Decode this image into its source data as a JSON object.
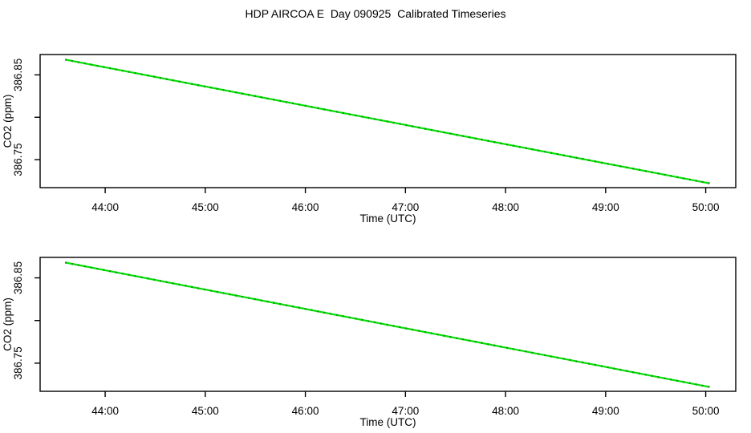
{
  "title": "HDP AIRCOA E  Day 090925  Calibrated Timeseries",
  "colors": {
    "background": "#FFFFFF",
    "axis": "#000000",
    "line_green_bright": "#00E300",
    "line_green_dark": "#0A9A0A"
  },
  "chart_data": {
    "type": "line",
    "title": "HDP AIRCOA E  Day 090925  Calibrated Timeseries",
    "layout": "two stacked panels with identical calibrated CO2 timeseries, full box axes, no grid, no legend",
    "panels": [
      {
        "name": "top",
        "xlabel": "Time (UTC)",
        "ylabel": "CO2 (ppm)",
        "xlim_hours_utc": [
          43.35,
          50.3
        ],
        "ylim_ppm": [
          386.717,
          386.874
        ],
        "grid": false,
        "xticks": [
          {
            "t": 44,
            "label": "44:00"
          },
          {
            "t": 45,
            "label": "45:00"
          },
          {
            "t": 46,
            "label": "46:00"
          },
          {
            "t": 47,
            "label": "47:00"
          },
          {
            "t": 48,
            "label": "48:00"
          },
          {
            "t": 49,
            "label": "49:00"
          },
          {
            "t": 50,
            "label": "50:00"
          }
        ],
        "yticks": [
          {
            "v": 386.85,
            "label": "386.85"
          },
          {
            "v": 386.8,
            "label": ""
          },
          {
            "v": 386.75,
            "label": "386.75"
          }
        ],
        "series": [
          {
            "name": "calibrated CO2",
            "line_color": "#00E300",
            "dot_color": "#0A9A0A",
            "points_time_ppm": [
              [
                43.6,
                386.868
              ],
              [
                50.04,
                386.722
              ]
            ]
          }
        ]
      },
      {
        "name": "bottom",
        "xlabel": "Time (UTC)",
        "ylabel": "CO2 (ppm)",
        "xlim_hours_utc": [
          43.35,
          50.3
        ],
        "ylim_ppm": [
          386.717,
          386.874
        ],
        "grid": false,
        "xticks": [
          {
            "t": 44,
            "label": "44:00"
          },
          {
            "t": 45,
            "label": "45:00"
          },
          {
            "t": 46,
            "label": "46:00"
          },
          {
            "t": 47,
            "label": "47:00"
          },
          {
            "t": 48,
            "label": "48:00"
          },
          {
            "t": 49,
            "label": "49:00"
          },
          {
            "t": 50,
            "label": "50:00"
          }
        ],
        "yticks": [
          {
            "v": 386.85,
            "label": "386.85"
          },
          {
            "v": 386.8,
            "label": ""
          },
          {
            "v": 386.75,
            "label": "386.75"
          }
        ],
        "series": [
          {
            "name": "calibrated CO2",
            "line_color": "#00E300",
            "dot_color": "#0A9A0A",
            "points_time_ppm": [
              [
                43.6,
                386.868
              ],
              [
                50.04,
                386.722
              ]
            ]
          }
        ]
      }
    ]
  }
}
